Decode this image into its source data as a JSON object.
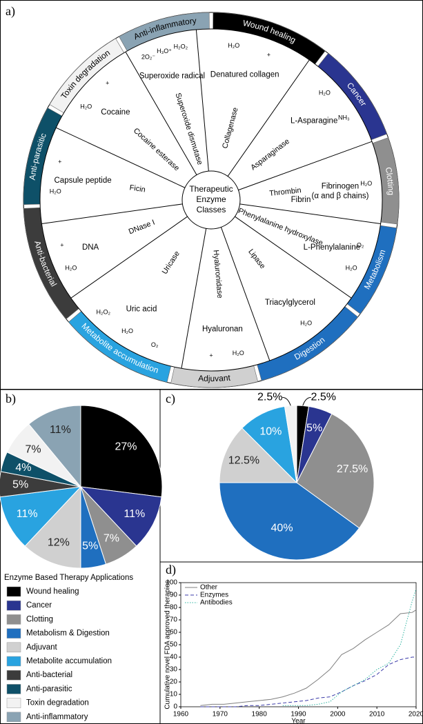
{
  "panel_a": {
    "label": "a)",
    "center": [
      "Therapeutic",
      "Enzyme",
      "Classes"
    ],
    "applications": [
      {
        "name": "Wound healing",
        "color": "#000000"
      },
      {
        "name": "Cancer",
        "color": "#2a3590"
      },
      {
        "name": "Clotting",
        "color": "#8f8f8f"
      },
      {
        "name": "Metabolism",
        "color": "#1f6fbf"
      },
      {
        "name": "Digestion",
        "color": "#1f6fbf"
      },
      {
        "name": "Adjuvant",
        "color": "#d0d0d0"
      },
      {
        "name": "Metabolite accumulation",
        "color": "#29a3e0"
      },
      {
        "name": "Anti-bacterial",
        "color": "#3c3c3c"
      },
      {
        "name": "Anti-parasitic",
        "color": "#0e5068"
      },
      {
        "name": "Toxin degradation",
        "color": "#f2f2f2"
      },
      {
        "name": "Anti-inflammatory",
        "color": "#8aa3b3"
      }
    ],
    "reactions": [
      {
        "enzyme": "Superoxide dismutase",
        "substrate": "Superoxide radical",
        "reagents": [
          "2O₂⁻",
          "H₃O⁺",
          "H₂O₂"
        ]
      },
      {
        "enzyme": "Collagenase",
        "substrate": "Denatured collagen",
        "reagents": [
          "H₂O",
          "+"
        ]
      },
      {
        "enzyme": "Asparaginase",
        "substrate": "L-Asparagine",
        "reagents": [
          "H₂O",
          "NH₃"
        ]
      },
      {
        "enzyme": "Thrombin",
        "substrate": "Fibrinogen",
        "note": "(α and β chains)",
        "product": "Fibrin",
        "reagents": [
          "H₂O"
        ]
      },
      {
        "enzyme": "Phenylalanine hydroxylase",
        "substrate": "L-Phenylalanine",
        "reagents": [
          "O₂",
          "H₂O"
        ]
      },
      {
        "enzyme": "Lipase",
        "substrate": "Triacylglycerol",
        "reagents": [
          "H₂O"
        ]
      },
      {
        "enzyme": "Hyaluronidase",
        "substrate": "Hyaluronan",
        "reagents": [
          "H₂O",
          "+"
        ]
      },
      {
        "enzyme": "Uricase",
        "substrate": "Uric acid",
        "reagents": [
          "O₂",
          "H₂O",
          "H₂O₂"
        ]
      },
      {
        "enzyme": "DNase I",
        "substrate": "DNA",
        "reagents": [
          "H₂O",
          "+"
        ]
      },
      {
        "enzyme": "Ficin",
        "substrate": "Capsule peptide",
        "reagents": [
          "H₂O",
          "+"
        ]
      },
      {
        "enzyme": "Cocaine esterase",
        "substrate": "Cocaine",
        "reagents": [
          "H₂O",
          "+"
        ]
      }
    ]
  },
  "chart_data": [
    {
      "type": "pie",
      "panel_label": "b)",
      "legend_title": "Enzyme Based Therapy Applications",
      "categories": [
        "Wound healing",
        "Cancer",
        "Clotting",
        "Metabolism & Digestion",
        "Adjuvant",
        "Metabolite accumulation",
        "Anti-bacterial",
        "Anti-parasitic",
        "Toxin degradation",
        "Anti-inflammatory"
      ],
      "values": [
        27,
        11,
        7,
        5,
        12,
        11,
        5,
        4,
        7,
        11
      ],
      "value_labels": [
        "27%",
        "11%",
        "7%",
        "5%",
        "12%",
        "11%",
        "5%",
        "4%",
        "7%",
        "11%"
      ],
      "colors": [
        "#000000",
        "#2a3590",
        "#8f8f8f",
        "#1f6fbf",
        "#d0d0d0",
        "#29a3e0",
        "#3c3c3c",
        "#0e5068",
        "#f2f2f2",
        "#8aa3b3"
      ]
    },
    {
      "type": "pie",
      "panel_label": "c)",
      "values": [
        2.5,
        5,
        27.5,
        40,
        12.5,
        10,
        2.5
      ],
      "value_labels": [
        "2.5%",
        "5%",
        "27.5%",
        "40%",
        "12.5%",
        "10%",
        "2.5%"
      ],
      "colors": [
        "#000000",
        "#2a3590",
        "#8f8f8f",
        "#1f6fbf",
        "#d0d0d0",
        "#29a3e0",
        "#f2f2f2"
      ]
    },
    {
      "type": "line",
      "panel_label": "d)",
      "xlabel": "Year",
      "ylabel": "Cumulative novel FDA approved therapies",
      "x": [
        1965,
        1968,
        1971,
        1974,
        1977,
        1980,
        1983,
        1986,
        1989,
        1992,
        1995,
        1998,
        2001,
        2004,
        2007,
        2010,
        2013,
        2016,
        2019,
        2020
      ],
      "series": [
        {
          "name": "Other",
          "color": "#7f7f7f",
          "dash": "solid",
          "values": [
            1,
            2,
            2,
            3,
            4,
            5,
            6,
            8,
            11,
            15,
            22,
            30,
            42,
            47,
            54,
            60,
            66,
            75,
            76,
            78
          ]
        },
        {
          "name": "Enzymes",
          "color": "#3a3aa8",
          "dash": "dashed",
          "values": [
            0,
            0,
            0,
            0,
            1,
            1,
            2,
            3,
            4,
            5,
            7,
            8,
            12,
            17,
            21,
            26,
            34,
            38,
            40,
            40
          ]
        },
        {
          "name": "Antibodies",
          "color": "#2bb3a0",
          "dash": "dotted",
          "values": [
            null,
            null,
            null,
            null,
            null,
            null,
            null,
            1,
            1,
            1,
            2,
            4,
            12,
            17,
            22,
            30,
            35,
            50,
            85,
            95
          ]
        }
      ],
      "xlim": [
        1960,
        2020
      ],
      "xticks": [
        1960,
        1970,
        1980,
        1990,
        2000,
        2010,
        2020
      ],
      "ylim": [
        0,
        100
      ],
      "yticks": [
        0,
        10,
        20,
        30,
        40,
        50,
        60,
        70,
        80,
        90,
        100
      ],
      "legend": "upper left"
    }
  ]
}
